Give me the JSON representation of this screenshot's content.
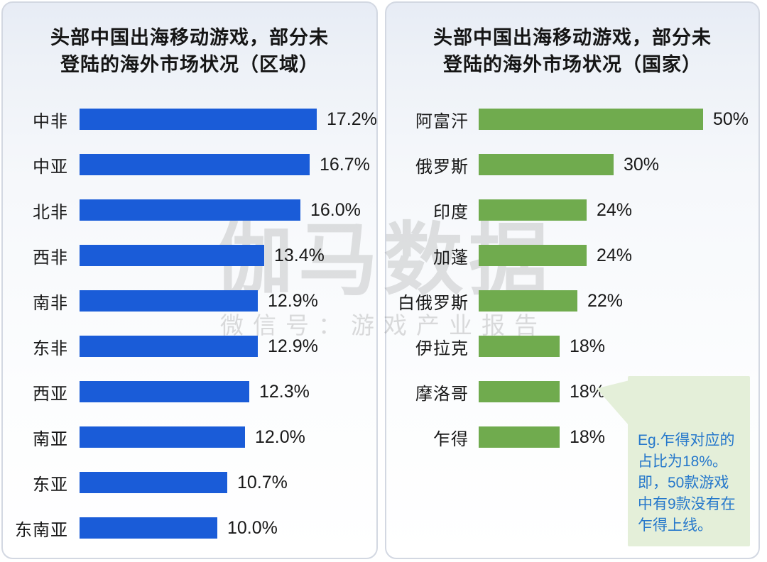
{
  "chart_data": [
    {
      "type": "bar",
      "orientation": "horizontal",
      "title": "头部中国出海移动游戏，部分未登陆的海外市场状况（区域）",
      "title_line1": "头部中国出海移动游戏，部分未",
      "title_line2": "登陆的海外市场状况（区域）",
      "categories": [
        "中非",
        "中亚",
        "北非",
        "西非",
        "南非",
        "东非",
        "西亚",
        "南亚",
        "东亚",
        "东南亚"
      ],
      "values": [
        17.2,
        16.7,
        16.0,
        13.4,
        12.9,
        12.9,
        12.3,
        12.0,
        10.7,
        10.0
      ],
      "value_labels": [
        "17.2%",
        "16.7%",
        "16.0%",
        "13.4%",
        "12.9%",
        "12.9%",
        "12.3%",
        "12.0%",
        "10.7%",
        "10.0%"
      ],
      "bar_color": "#1a5cd8",
      "xlim": [
        0,
        17.2
      ],
      "grid": false,
      "legend": false
    },
    {
      "type": "bar",
      "orientation": "horizontal",
      "title": "头部中国出海移动游戏，部分未登陆的海外市场状况（国家）",
      "title_line1": "头部中国出海移动游戏，部分未",
      "title_line2": "登陆的海外市场状况（国家）",
      "categories": [
        "阿富汗",
        "俄罗斯",
        "印度",
        "加蓬",
        "白俄罗斯",
        "伊拉克",
        "摩洛哥",
        "乍得"
      ],
      "values": [
        50,
        30,
        24,
        24,
        22,
        18,
        18,
        18
      ],
      "value_labels": [
        "50%",
        "30%",
        "24%",
        "24%",
        "22%",
        "18%",
        "18%",
        "18%"
      ],
      "bar_color": "#70ab4e",
      "xlim": [
        0,
        50
      ],
      "grid": false,
      "legend": false
    }
  ],
  "callout": {
    "text": "Eg.乍得对应的\n占比为18%。\n即，50款游戏\n中有9款没有在\n乍得上线。",
    "bg_color": "#e4efd9",
    "text_color": "#2678cb"
  },
  "watermark": {
    "line1": "伽马数据",
    "line2": "微信号：游戏产业报告"
  }
}
